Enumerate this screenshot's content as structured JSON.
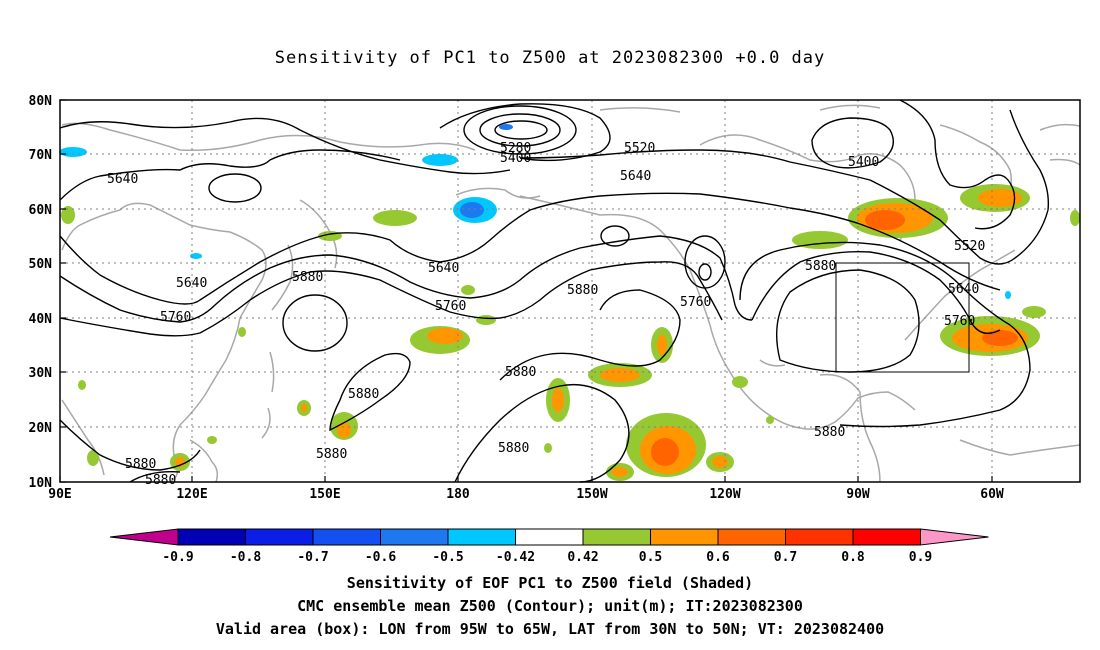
{
  "title": "Sensitivity of PC1 to Z500 at 2023082300 +0.0 day",
  "map": {
    "lon_ticks": [
      "90E",
      "120E",
      "150E",
      "180",
      "150W",
      "120W",
      "90W",
      "60W"
    ],
    "lat_ticks": [
      "80N",
      "70N",
      "60N",
      "50N",
      "40N",
      "30N",
      "20N",
      "10N"
    ],
    "contour_labels": [
      "5640",
      "5280",
      "5400",
      "5520",
      "5400",
      "5640",
      "5880",
      "5640",
      "5640",
      "5880",
      "5760",
      "5760",
      "5880",
      "5880",
      "5760",
      "5880",
      "5520",
      "5640",
      "5760",
      "5880",
      "5880",
      "5880",
      "5880",
      "5880"
    ],
    "valid_box": {
      "lon_from": "95W",
      "lon_to": "65W",
      "lat_from": "30N",
      "lat_to": "50N"
    }
  },
  "colorbar": {
    "labels": [
      "-0.9",
      "-0.8",
      "-0.7",
      "-0.6",
      "-0.5",
      "-0.42",
      "0.42",
      "0.5",
      "0.6",
      "0.7",
      "0.8",
      "0.9"
    ],
    "colors": [
      "#c0008c",
      "#0000b4",
      "#0a1ee6",
      "#1450f0",
      "#1e78f0",
      "#00c8ff",
      "#ffffff",
      "#96c832",
      "#ff9600",
      "#ff6400",
      "#ff3200",
      "#ff0000",
      "#ff96c8"
    ]
  },
  "captions": {
    "line1": "Sensitivity of EOF PC1 to Z500 field (Shaded)",
    "line2": "CMC ensemble mean Z500 (Contour); unit(m); IT:2023082300",
    "line3": "Valid area (box): LON from 95W to 65W, LAT from 30N to 50N; VT: 2023082400"
  }
}
